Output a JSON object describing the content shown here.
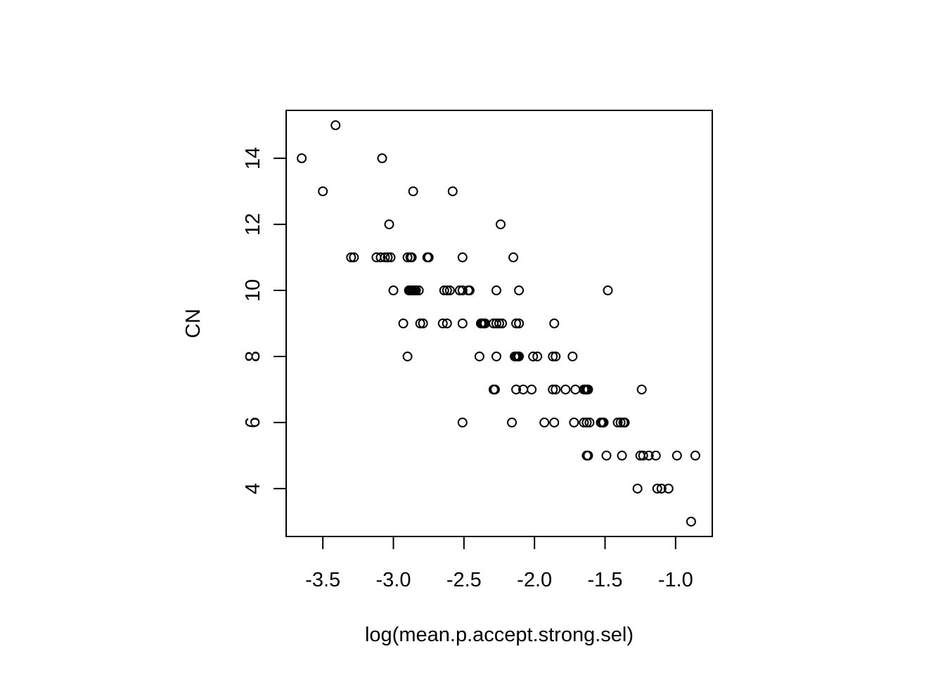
{
  "chart_data": {
    "type": "scatter",
    "title": "",
    "xlabel": "log(mean.p.accept.strong.sel)",
    "ylabel": "CN",
    "xlim": [
      -3.76,
      -0.74
    ],
    "ylim": [
      2.55,
      15.45
    ],
    "x_ticks": [
      -3.5,
      -3.0,
      -2.5,
      -2.0,
      -1.5,
      -1.0
    ],
    "x_tick_labels": [
      "-3.5",
      "-3.0",
      "-2.5",
      "-2.0",
      "-1.5",
      "-1.0"
    ],
    "y_ticks": [
      4,
      6,
      8,
      10,
      12,
      14
    ],
    "y_tick_labels": [
      "4",
      "6",
      "8",
      "10",
      "12",
      "14"
    ],
    "grid": false,
    "marker": "open-circle",
    "colors": {
      "points": "#000000",
      "frame": "#000000",
      "background": "#ffffff"
    },
    "points": [
      {
        "x": -3.41,
        "y": 15
      },
      {
        "x": -3.65,
        "y": 14
      },
      {
        "x": -3.08,
        "y": 14
      },
      {
        "x": -3.5,
        "y": 13
      },
      {
        "x": -2.86,
        "y": 13
      },
      {
        "x": -2.58,
        "y": 13
      },
      {
        "x": -3.03,
        "y": 12
      },
      {
        "x": -2.24,
        "y": 12
      },
      {
        "x": -3.3,
        "y": 11
      },
      {
        "x": -3.28,
        "y": 11
      },
      {
        "x": -3.12,
        "y": 11
      },
      {
        "x": -3.09,
        "y": 11
      },
      {
        "x": -3.06,
        "y": 11
      },
      {
        "x": -3.04,
        "y": 11
      },
      {
        "x": -3.02,
        "y": 11
      },
      {
        "x": -2.9,
        "y": 11
      },
      {
        "x": -2.88,
        "y": 11
      },
      {
        "x": -2.87,
        "y": 11
      },
      {
        "x": -2.76,
        "y": 11
      },
      {
        "x": -2.75,
        "y": 11
      },
      {
        "x": -2.51,
        "y": 11
      },
      {
        "x": -2.15,
        "y": 11
      },
      {
        "x": -3.0,
        "y": 10
      },
      {
        "x": -2.89,
        "y": 10
      },
      {
        "x": -2.88,
        "y": 10
      },
      {
        "x": -2.87,
        "y": 10
      },
      {
        "x": -2.86,
        "y": 10
      },
      {
        "x": -2.85,
        "y": 10
      },
      {
        "x": -2.84,
        "y": 10
      },
      {
        "x": -2.82,
        "y": 10
      },
      {
        "x": -2.64,
        "y": 10
      },
      {
        "x": -2.62,
        "y": 10
      },
      {
        "x": -2.6,
        "y": 10
      },
      {
        "x": -2.53,
        "y": 10
      },
      {
        "x": -2.51,
        "y": 10
      },
      {
        "x": -2.47,
        "y": 10
      },
      {
        "x": -2.46,
        "y": 10
      },
      {
        "x": -2.27,
        "y": 10
      },
      {
        "x": -2.11,
        "y": 10
      },
      {
        "x": -1.48,
        "y": 10
      },
      {
        "x": -2.93,
        "y": 9
      },
      {
        "x": -2.81,
        "y": 9
      },
      {
        "x": -2.79,
        "y": 9
      },
      {
        "x": -2.65,
        "y": 9
      },
      {
        "x": -2.62,
        "y": 9
      },
      {
        "x": -2.51,
        "y": 9
      },
      {
        "x": -2.38,
        "y": 9
      },
      {
        "x": -2.37,
        "y": 9
      },
      {
        "x": -2.36,
        "y": 9
      },
      {
        "x": -2.35,
        "y": 9
      },
      {
        "x": -2.29,
        "y": 9
      },
      {
        "x": -2.27,
        "y": 9
      },
      {
        "x": -2.25,
        "y": 9
      },
      {
        "x": -2.23,
        "y": 9
      },
      {
        "x": -2.13,
        "y": 9
      },
      {
        "x": -2.11,
        "y": 9
      },
      {
        "x": -1.86,
        "y": 9
      },
      {
        "x": -2.9,
        "y": 8
      },
      {
        "x": -2.39,
        "y": 8
      },
      {
        "x": -2.27,
        "y": 8
      },
      {
        "x": -2.14,
        "y": 8
      },
      {
        "x": -2.13,
        "y": 8
      },
      {
        "x": -2.12,
        "y": 8
      },
      {
        "x": -2.11,
        "y": 8
      },
      {
        "x": -2.01,
        "y": 8
      },
      {
        "x": -1.98,
        "y": 8
      },
      {
        "x": -1.87,
        "y": 8
      },
      {
        "x": -1.85,
        "y": 8
      },
      {
        "x": -1.73,
        "y": 8
      },
      {
        "x": -2.29,
        "y": 7
      },
      {
        "x": -2.28,
        "y": 7
      },
      {
        "x": -2.13,
        "y": 7
      },
      {
        "x": -2.08,
        "y": 7
      },
      {
        "x": -2.02,
        "y": 7
      },
      {
        "x": -1.87,
        "y": 7
      },
      {
        "x": -1.85,
        "y": 7
      },
      {
        "x": -1.78,
        "y": 7
      },
      {
        "x": -1.71,
        "y": 7
      },
      {
        "x": -1.65,
        "y": 7
      },
      {
        "x": -1.64,
        "y": 7
      },
      {
        "x": -1.63,
        "y": 7
      },
      {
        "x": -1.62,
        "y": 7
      },
      {
        "x": -1.24,
        "y": 7
      },
      {
        "x": -2.51,
        "y": 6
      },
      {
        "x": -2.16,
        "y": 6
      },
      {
        "x": -1.93,
        "y": 6
      },
      {
        "x": -1.86,
        "y": 6
      },
      {
        "x": -1.72,
        "y": 6
      },
      {
        "x": -1.65,
        "y": 6
      },
      {
        "x": -1.63,
        "y": 6
      },
      {
        "x": -1.61,
        "y": 6
      },
      {
        "x": -1.53,
        "y": 6
      },
      {
        "x": -1.52,
        "y": 6
      },
      {
        "x": -1.51,
        "y": 6
      },
      {
        "x": -1.41,
        "y": 6
      },
      {
        "x": -1.39,
        "y": 6
      },
      {
        "x": -1.37,
        "y": 6
      },
      {
        "x": -1.36,
        "y": 6
      },
      {
        "x": -1.63,
        "y": 5
      },
      {
        "x": -1.62,
        "y": 5
      },
      {
        "x": -1.49,
        "y": 5
      },
      {
        "x": -1.38,
        "y": 5
      },
      {
        "x": -1.25,
        "y": 5
      },
      {
        "x": -1.23,
        "y": 5
      },
      {
        "x": -1.19,
        "y": 5
      },
      {
        "x": -1.14,
        "y": 5
      },
      {
        "x": -0.99,
        "y": 5
      },
      {
        "x": -0.86,
        "y": 5
      },
      {
        "x": -1.27,
        "y": 4
      },
      {
        "x": -1.13,
        "y": 4
      },
      {
        "x": -1.1,
        "y": 4
      },
      {
        "x": -1.05,
        "y": 4
      },
      {
        "x": -0.89,
        "y": 3
      }
    ]
  }
}
